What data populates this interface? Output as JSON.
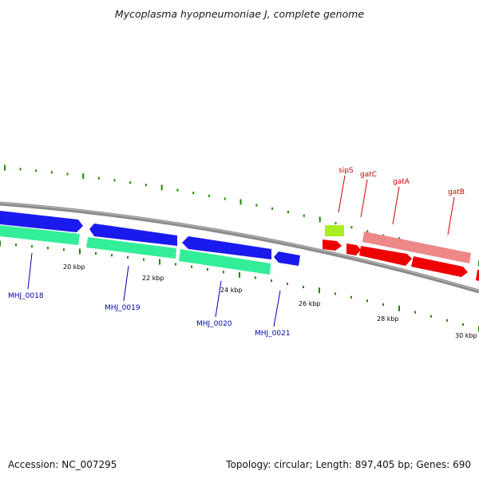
{
  "title": "Mycoplasma hyopneumoniae J, complete genome",
  "footer": {
    "accession": "Accession: NC_007295",
    "stats": "Topology: circular; Length: 897,405 bp; Genes: 690"
  },
  "colors": {
    "background": "#ffffff",
    "backbone": "#8a8a8a",
    "forward_blue": "#1a1aee",
    "reverse_green": "#33ee99",
    "rrna_red": "#ee0000",
    "pink": "#ee8888",
    "lime": "#aaee22",
    "tick_green": "#228800",
    "locus_label": "#0000aa",
    "gene_label": "#cc0000"
  },
  "scale_labels": [
    "20 kbp",
    "22 kbp",
    "24 kbp",
    "26 kbp",
    "28 kbp",
    "30 kbp"
  ],
  "locus_labels": [
    "MHJ_0018",
    "MHJ_0019",
    "MHJ_0020",
    "MHJ_0021"
  ],
  "gene_labels": [
    "sipS",
    "gatC",
    "gatA",
    "gatB"
  ],
  "chart_data": {
    "type": "genome_map",
    "title": "Mycoplasma hyopneumoniae J, complete genome",
    "topology": "circular",
    "length_bp": 897405,
    "gene_count": 690,
    "visible_range_kbp": [
      18,
      30
    ],
    "scale_ticks_kbp": [
      20,
      22,
      24,
      26,
      28,
      30
    ],
    "annotated_features": [
      {
        "name": "MHJ_0018",
        "type": "gene",
        "color": "blue/green"
      },
      {
        "name": "MHJ_0019",
        "type": "gene",
        "color": "blue/green"
      },
      {
        "name": "MHJ_0020",
        "type": "gene",
        "color": "blue/green"
      },
      {
        "name": "MHJ_0021",
        "type": "gene",
        "color": "blue"
      },
      {
        "name": "sipS",
        "type": "gene",
        "color": "lime"
      },
      {
        "name": "gatC",
        "type": "gene",
        "color": "red"
      },
      {
        "name": "gatA",
        "type": "gene",
        "color": "red/pink"
      },
      {
        "name": "gatB",
        "type": "gene",
        "color": "red/pink"
      }
    ]
  }
}
